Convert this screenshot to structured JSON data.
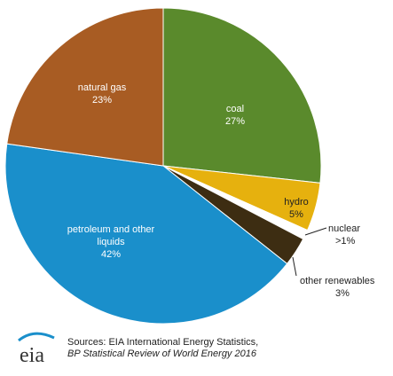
{
  "chart_data": {
    "type": "pie",
    "slices": [
      {
        "label": "coal",
        "value": 27,
        "display": "27%",
        "color": "#5a8a2c"
      },
      {
        "label": "hydro",
        "value": 5,
        "display": "5%",
        "color": "#e6b10e"
      },
      {
        "label": "nuclear",
        "value": 1,
        "display": ">1%",
        "color": "#ffffff"
      },
      {
        "label": "other renewables",
        "value": 3,
        "display": "3%",
        "color": "#3d2d12"
      },
      {
        "label": "petroleum and other liquids",
        "value": 42,
        "display": "42%",
        "color": "#1a8fcb"
      },
      {
        "label": "natural gas",
        "value": 23,
        "display": "23%",
        "color": "#a85c23"
      }
    ]
  },
  "labels": {
    "coal": "coal",
    "coal_pct": "27%",
    "hydro": "hydro",
    "hydro_pct": "5%",
    "nuclear": "nuclear",
    "nuclear_pct": ">1%",
    "other_renewables": "other renewables",
    "other_renewables_pct": "3%",
    "petroleum_line1": "petroleum and other",
    "petroleum_line2": "liquids",
    "petroleum_pct": "42%",
    "natural_gas": "natural gas",
    "natural_gas_pct": "23%"
  },
  "footer": {
    "logo_text": "eia",
    "sources_line1": "Sources: EIA International Energy Statistics,",
    "sources_line2": "BP Statistical Review of World Energy 2016"
  }
}
